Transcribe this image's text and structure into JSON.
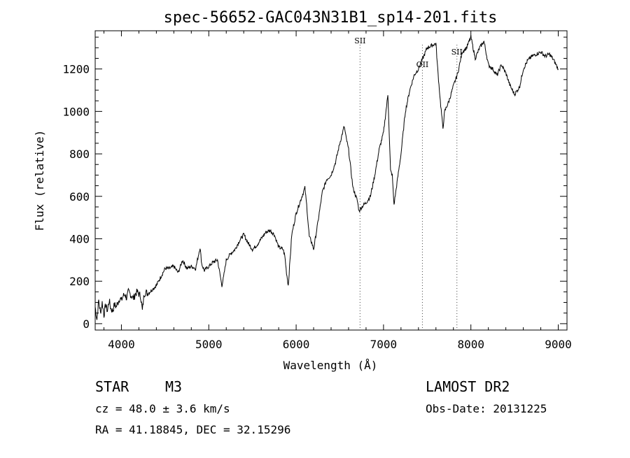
{
  "chart_data": {
    "type": "line",
    "title": "spec-56652-GAC043N31B1_sp14-201.fits",
    "xlabel": "Wavelength (Å)",
    "ylabel": "Flux (relative)",
    "xlim": [
      3700,
      9100
    ],
    "ylim": [
      -30,
      1380
    ],
    "x_ticks": [
      4000,
      5000,
      6000,
      7000,
      8000,
      9000
    ],
    "y_ticks": [
      0,
      200,
      400,
      600,
      800,
      1000,
      1200
    ],
    "series": [
      {
        "name": "flux",
        "x": [
          3700,
          3720,
          3740,
          3760,
          3780,
          3800,
          3820,
          3840,
          3860,
          3880,
          3900,
          3920,
          3940,
          3960,
          3980,
          4000,
          4020,
          4040,
          4060,
          4080,
          4100,
          4120,
          4140,
          4160,
          4180,
          4200,
          4220,
          4240,
          4260,
          4280,
          4300,
          4350,
          4400,
          4450,
          4500,
          4550,
          4600,
          4650,
          4700,
          4750,
          4800,
          4850,
          4900,
          4920,
          4950,
          5000,
          5050,
          5100,
          5150,
          5170,
          5200,
          5250,
          5300,
          5350,
          5400,
          5450,
          5500,
          5550,
          5600,
          5650,
          5700,
          5750,
          5800,
          5850,
          5870,
          5890,
          5910,
          5950,
          6000,
          6050,
          6100,
          6120,
          6150,
          6180,
          6200,
          6250,
          6300,
          6350,
          6400,
          6450,
          6500,
          6550,
          6570,
          6600,
          6650,
          6700,
          6720,
          6750,
          6800,
          6850,
          6900,
          6950,
          7000,
          7050,
          7080,
          7100,
          7120,
          7150,
          7200,
          7250,
          7300,
          7350,
          7400,
          7450,
          7500,
          7550,
          7600,
          7620,
          7650,
          7680,
          7700,
          7750,
          7800,
          7850,
          7900,
          7950,
          8000,
          8050,
          8100,
          8150,
          8200,
          8250,
          8300,
          8350,
          8400,
          8450,
          8500,
          8550,
          8560,
          8600,
          8650,
          8700,
          8750,
          8800,
          8850,
          8900,
          8950,
          9000
        ],
        "y": [
          80,
          20,
          110,
          50,
          100,
          40,
          90,
          60,
          110,
          70,
          60,
          90,
          80,
          100,
          120,
          110,
          130,
          140,
          120,
          150,
          140,
          130,
          120,
          140,
          150,
          140,
          130,
          60,
          140,
          150,
          140,
          160,
          180,
          220,
          260,
          260,
          270,
          240,
          300,
          260,
          270,
          260,
          360,
          280,
          250,
          270,
          290,
          300,
          180,
          220,
          300,
          330,
          350,
          390,
          420,
          380,
          350,
          370,
          400,
          430,
          440,
          420,
          360,
          350,
          320,
          240,
          180,
          420,
          520,
          580,
          640,
          560,
          410,
          380,
          350,
          480,
          620,
          680,
          700,
          760,
          850,
          930,
          880,
          820,
          640,
          580,
          530,
          550,
          570,
          600,
          700,
          820,
          900,
          1080,
          720,
          700,
          560,
          650,
          800,
          1000,
          1100,
          1170,
          1200,
          1250,
          1300,
          1310,
          1320,
          1200,
          1050,
          920,
          1000,
          1050,
          1120,
          1180,
          1280,
          1300,
          1350,
          1250,
          1300,
          1330,
          1220,
          1200,
          1170,
          1220,
          1180,
          1120,
          1080,
          1110,
          1120,
          1200,
          1240,
          1260,
          1270,
          1280,
          1260,
          1270,
          1240,
          1200
        ]
      }
    ],
    "annotations": [
      {
        "label": "SII",
        "x": 6731
      },
      {
        "label": "OII",
        "x": 7445
      },
      {
        "label": "SII",
        "x": 7840
      }
    ]
  },
  "info": {
    "object_class": "STAR",
    "subclass": "M3",
    "survey": "LAMOST DR2",
    "cz": "cz = 48.0 ± 3.6 km/s",
    "obs_date": "Obs-Date: 20131225",
    "radec": "RA =  41.18845, DEC =  32.15296"
  }
}
